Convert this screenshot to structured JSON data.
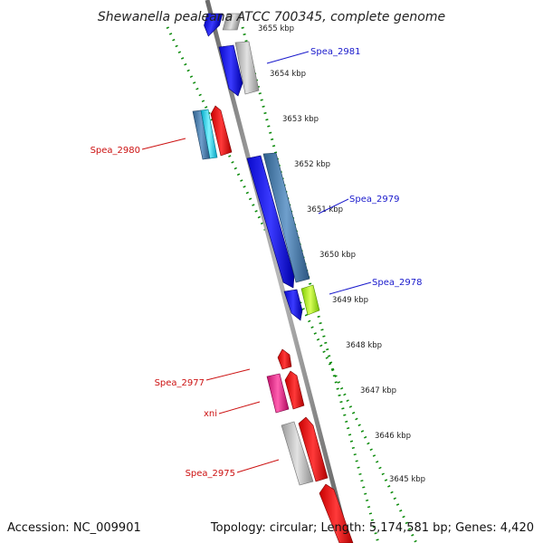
{
  "title": "Shewanella pealeana ATCC 700345, complete genome",
  "footer": {
    "accession": "Accession: NC_009901",
    "summary": "Topology: circular; Length: 5,174,581 bp; Genes: 4,420"
  },
  "colors": {
    "backbone": "#8a8a8a",
    "ruler_dots": "#0a8a0a",
    "forward_label": "#1a1acc",
    "reverse_label": "#cc1111"
  },
  "ticks": [
    {
      "label": "3655 kbp"
    },
    {
      "label": "3654 kbp"
    },
    {
      "label": "3653 kbp"
    },
    {
      "label": "3652 kbp"
    },
    {
      "label": "3651 kbp"
    },
    {
      "label": "3650 kbp"
    },
    {
      "label": "3649 kbp"
    },
    {
      "label": "3648 kbp"
    },
    {
      "label": "3647 kbp"
    },
    {
      "label": "3646 kbp"
    },
    {
      "label": "3645 kbp"
    }
  ],
  "gene_labels": [
    {
      "text": "Spea_2981",
      "strand": "forward"
    },
    {
      "text": "Spea_2980",
      "strand": "reverse"
    },
    {
      "text": "Spea_2979",
      "strand": "forward"
    },
    {
      "text": "Spea_2978",
      "strand": "forward"
    },
    {
      "text": "Spea_2977",
      "strand": "reverse"
    },
    {
      "text": "xni",
      "strand": "reverse"
    },
    {
      "text": "Spea_2975",
      "strand": "reverse"
    }
  ]
}
